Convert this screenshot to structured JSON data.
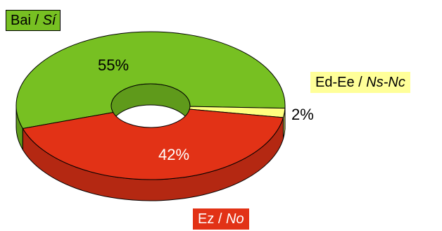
{
  "chart_data": {
    "type": "pie",
    "style": "3d-donut",
    "slices": [
      {
        "label_eu": "Bai",
        "label_es": "Sí",
        "value": 55,
        "value_label": "55%",
        "color": "#77c022"
      },
      {
        "label_eu": "Ed-Ee",
        "label_es": "Ns-Nc",
        "value": 2,
        "value_label": "2%",
        "color": "#ffff80"
      },
      {
        "label_eu": "Ez",
        "label_es": "No",
        "value": 42,
        "value_label": "42%",
        "color": "#e23216"
      }
    ],
    "title": "",
    "legend": "callout labels"
  },
  "colors": {
    "outline": "#000000",
    "green_side": "#5f9a1b",
    "yellow_side": "#cccc66",
    "red_side": "#b42812"
  }
}
